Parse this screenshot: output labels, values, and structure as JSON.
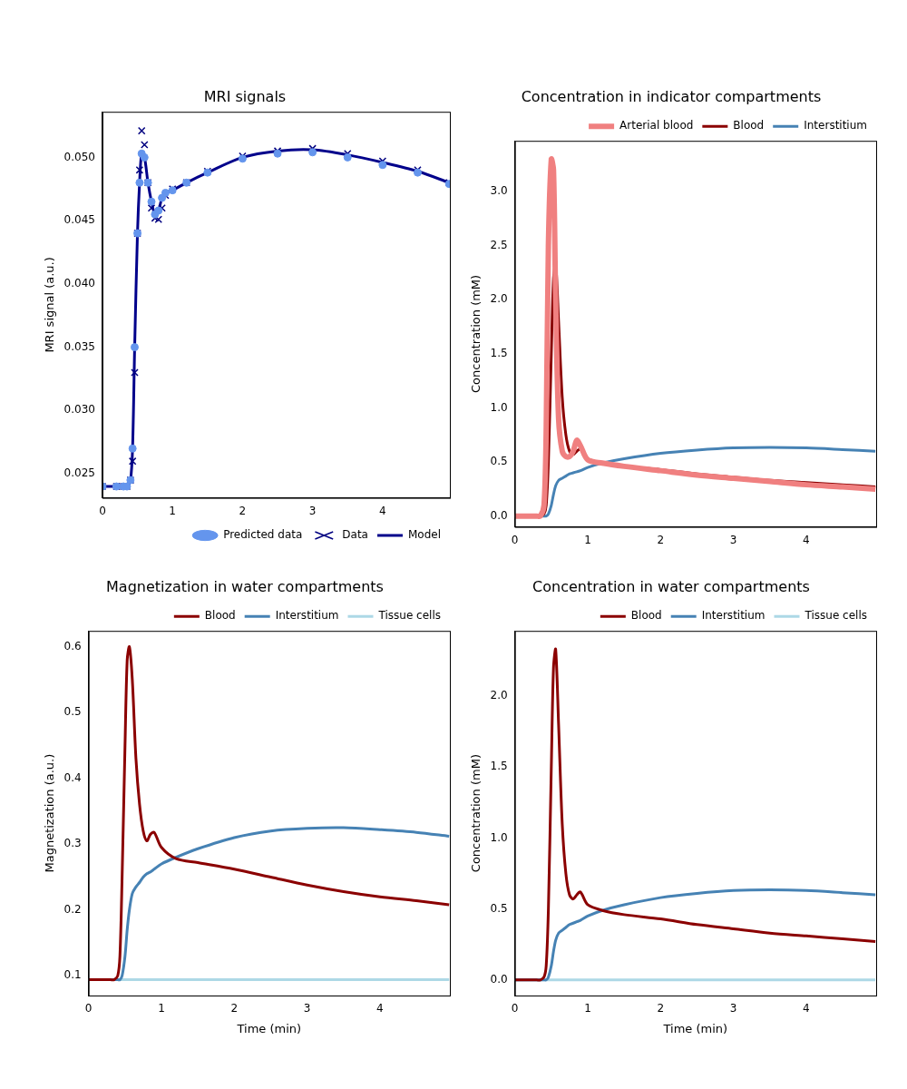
{
  "chart_data": [
    {
      "type": "line",
      "title": "MRI signals",
      "ylabel": "MRI signal (a.u.)",
      "x": [
        0,
        0.2,
        0.3,
        0.35,
        0.4,
        0.43,
        0.46,
        0.5,
        0.53,
        0.56,
        0.6,
        0.65,
        0.7,
        0.75,
        0.8,
        0.85,
        0.9,
        1.0,
        1.2,
        1.5,
        2.0,
        2.5,
        3.0,
        3.5,
        4.0,
        4.5,
        4.95
      ],
      "xlim": [
        0,
        4.96
      ],
      "xticks": [
        0,
        1,
        2,
        3,
        4
      ],
      "ylim": [
        0.0231,
        0.0536
      ],
      "yticks": [
        0.025,
        {
          "value": 0.03,
          "label": "0.030"
        },
        0.035,
        {
          "value": 0.04,
          "label": "0.040"
        },
        0.045,
        {
          "value": 0.05,
          "label": "0.050"
        }
      ],
      "grid": false,
      "legend": "lower right",
      "series": [
        {
          "name": "Predicted data",
          "type": "scatter",
          "marker": "circle",
          "color": "#6495ed",
          "values": [
            0.024,
            0.024,
            0.024,
            0.024,
            0.0245,
            0.027,
            0.035,
            0.044,
            0.048,
            0.0503,
            0.05,
            0.048,
            0.0465,
            0.0455,
            0.0458,
            0.0468,
            0.0472,
            0.0474,
            0.048,
            0.0488,
            0.0499,
            0.0503,
            0.0504,
            0.05,
            0.0494,
            0.0488,
            0.0479
          ]
        },
        {
          "name": "Data",
          "type": "scatter",
          "marker": "x",
          "color": "#000080",
          "values": [
            0.024,
            0.024,
            0.024,
            0.024,
            0.0245,
            0.026,
            0.033,
            0.044,
            0.049,
            0.0521,
            0.051,
            0.048,
            0.046,
            0.0452,
            0.0451,
            0.046,
            0.047,
            0.0475,
            0.048,
            0.0489,
            0.0501,
            0.0505,
            0.0507,
            0.0503,
            0.0497,
            0.049,
            0.048
          ]
        },
        {
          "name": "Model",
          "type": "line",
          "line_style": "solid",
          "color": "#00008b",
          "values": [
            0.024,
            0.024,
            0.024,
            0.024,
            0.0245,
            0.027,
            0.035,
            0.044,
            0.048,
            0.0503,
            0.05,
            0.048,
            0.0465,
            0.0455,
            0.0458,
            0.0468,
            0.0472,
            0.0474,
            0.048,
            0.0488,
            0.05,
            0.0505,
            0.0506,
            0.0502,
            0.0496,
            0.0489,
            0.048
          ]
        }
      ]
    },
    {
      "type": "line",
      "title": "Concentration in indicator compartments",
      "ylabel": "Concentration (mM)",
      "x": [
        0,
        0.2,
        0.3,
        0.35,
        0.4,
        0.43,
        0.46,
        0.5,
        0.53,
        0.56,
        0.6,
        0.65,
        0.7,
        0.75,
        0.8,
        0.85,
        0.9,
        1.0,
        1.2,
        1.5,
        2.0,
        2.5,
        3.0,
        3.5,
        4.0,
        4.5,
        4.95
      ],
      "xlim": [
        0,
        4.96
      ],
      "xticks": [
        0,
        1,
        2,
        3,
        4
      ],
      "ylim": [
        -0.1,
        3.47
      ],
      "yticks": [
        {
          "value": 0,
          "label": "0.0"
        },
        0.5,
        {
          "value": 1,
          "label": "1.0"
        },
        1.5,
        {
          "value": 2,
          "label": "2.0"
        },
        2.5,
        {
          "value": 3,
          "label": "3.0"
        }
      ],
      "grid": false,
      "legend": "upper right",
      "series": [
        {
          "name": "Arterial blood",
          "type": "line",
          "line_style": "thick",
          "color": "#f08080",
          "values": [
            0,
            0,
            0,
            0,
            0.1,
            0.8,
            2.5,
            3.3,
            3.2,
            2.0,
            0.9,
            0.6,
            0.55,
            0.55,
            0.6,
            0.7,
            0.65,
            0.52,
            0.49,
            0.46,
            0.42,
            0.38,
            0.35,
            0.32,
            0.29,
            0.27,
            0.25
          ]
        },
        {
          "name": "Blood",
          "type": "line",
          "line_style": "solid",
          "color": "#8b0000",
          "values": [
            0,
            0,
            0,
            0,
            0.02,
            0.1,
            0.5,
            1.5,
            2.2,
            2.33,
            1.8,
            1.1,
            0.75,
            0.6,
            0.57,
            0.6,
            0.62,
            0.53,
            0.49,
            0.46,
            0.43,
            0.39,
            0.36,
            0.33,
            0.31,
            0.29,
            0.27
          ]
        },
        {
          "name": "Interstitium",
          "type": "line",
          "line_style": "solid",
          "color": "#4682b4",
          "values": [
            0,
            0,
            0,
            0,
            0,
            0,
            0.02,
            0.1,
            0.2,
            0.28,
            0.33,
            0.35,
            0.37,
            0.39,
            0.4,
            0.41,
            0.42,
            0.45,
            0.49,
            0.53,
            0.58,
            0.61,
            0.63,
            0.635,
            0.63,
            0.615,
            0.6
          ]
        }
      ]
    },
    {
      "type": "line",
      "title": "Magnetization in water compartments",
      "xlabel": "Time (min)",
      "ylabel": "Magnetization (a.u.)",
      "x": [
        0,
        0.2,
        0.3,
        0.35,
        0.4,
        0.43,
        0.46,
        0.5,
        0.53,
        0.56,
        0.6,
        0.65,
        0.7,
        0.75,
        0.8,
        0.85,
        0.9,
        1.0,
        1.2,
        1.5,
        2.0,
        2.5,
        3.0,
        3.5,
        4.0,
        4.5,
        4.95
      ],
      "xlim": [
        0,
        4.96
      ],
      "xticks": [
        0,
        1,
        2,
        3,
        4
      ],
      "ylim": [
        0.07,
        0.624
      ],
      "yticks": [
        0.1,
        0.2,
        0.3,
        0.4,
        0.5,
        0.6
      ],
      "grid": false,
      "legend": "upper right",
      "series": [
        {
          "name": "Blood",
          "type": "line",
          "line_style": "solid",
          "color": "#8b0000",
          "values": [
            0.094,
            0.094,
            0.094,
            0.094,
            0.1,
            0.13,
            0.25,
            0.45,
            0.58,
            0.6,
            0.55,
            0.43,
            0.36,
            0.32,
            0.305,
            0.315,
            0.318,
            0.295,
            0.278,
            0.272,
            0.262,
            0.25,
            0.238,
            0.228,
            0.22,
            0.214,
            0.208
          ]
        },
        {
          "name": "Interstitium",
          "type": "line",
          "line_style": "solid",
          "color": "#4682b4",
          "values": [
            0.094,
            0.094,
            0.094,
            0.094,
            0.094,
            0.094,
            0.1,
            0.13,
            0.17,
            0.2,
            0.225,
            0.235,
            0.242,
            0.25,
            0.255,
            0.258,
            0.262,
            0.27,
            0.28,
            0.293,
            0.31,
            0.32,
            0.324,
            0.325,
            0.322,
            0.318,
            0.312
          ]
        },
        {
          "name": "Tissue cells",
          "type": "line",
          "line_style": "solid",
          "color": "#add8e6",
          "values": [
            0.094,
            0.094,
            0.094,
            0.094,
            0.094,
            0.094,
            0.094,
            0.094,
            0.094,
            0.094,
            0.094,
            0.094,
            0.094,
            0.094,
            0.094,
            0.094,
            0.094,
            0.094,
            0.094,
            0.094,
            0.094,
            0.094,
            0.094,
            0.094,
            0.094,
            0.094,
            0.094
          ]
        }
      ]
    },
    {
      "type": "line",
      "title": "Concentration in water compartments",
      "xlabel": "Time (min)",
      "ylabel": "Concentration (mM)",
      "x": [
        0,
        0.2,
        0.3,
        0.35,
        0.4,
        0.43,
        0.46,
        0.5,
        0.53,
        0.56,
        0.6,
        0.65,
        0.7,
        0.75,
        0.8,
        0.85,
        0.9,
        1.0,
        1.2,
        1.5,
        2.0,
        2.5,
        3.0,
        3.5,
        4.0,
        4.5,
        4.95
      ],
      "xlim": [
        0,
        4.96
      ],
      "xticks": [
        0,
        1,
        2,
        3,
        4
      ],
      "ylim": [
        -0.11,
        2.46
      ],
      "yticks": [
        {
          "value": 0,
          "label": "0.0"
        },
        0.5,
        {
          "value": 1,
          "label": "1.0"
        },
        1.5,
        {
          "value": 2,
          "label": "2.0"
        }
      ],
      "grid": false,
      "legend": "upper right",
      "series": [
        {
          "name": "Blood",
          "type": "line",
          "line_style": "solid",
          "color": "#8b0000",
          "values": [
            0,
            0,
            0,
            0,
            0.02,
            0.1,
            0.5,
            1.5,
            2.2,
            2.33,
            1.8,
            1.1,
            0.75,
            0.6,
            0.57,
            0.6,
            0.62,
            0.53,
            0.49,
            0.46,
            0.43,
            0.39,
            0.36,
            0.33,
            0.31,
            0.29,
            0.27
          ]
        },
        {
          "name": "Interstitium",
          "type": "line",
          "line_style": "solid",
          "color": "#4682b4",
          "values": [
            0,
            0,
            0,
            0,
            0,
            0,
            0.02,
            0.1,
            0.2,
            0.28,
            0.33,
            0.35,
            0.37,
            0.39,
            0.4,
            0.41,
            0.42,
            0.45,
            0.49,
            0.53,
            0.58,
            0.61,
            0.63,
            0.635,
            0.63,
            0.615,
            0.6
          ]
        },
        {
          "name": "Tissue cells",
          "type": "line",
          "line_style": "solid",
          "color": "#add8e6",
          "values": [
            0,
            0,
            0,
            0,
            0,
            0,
            0,
            0,
            0,
            0,
            0,
            0,
            0,
            0,
            0,
            0,
            0,
            0,
            0,
            0,
            0,
            0,
            0,
            0,
            0,
            0,
            0
          ]
        }
      ]
    }
  ]
}
